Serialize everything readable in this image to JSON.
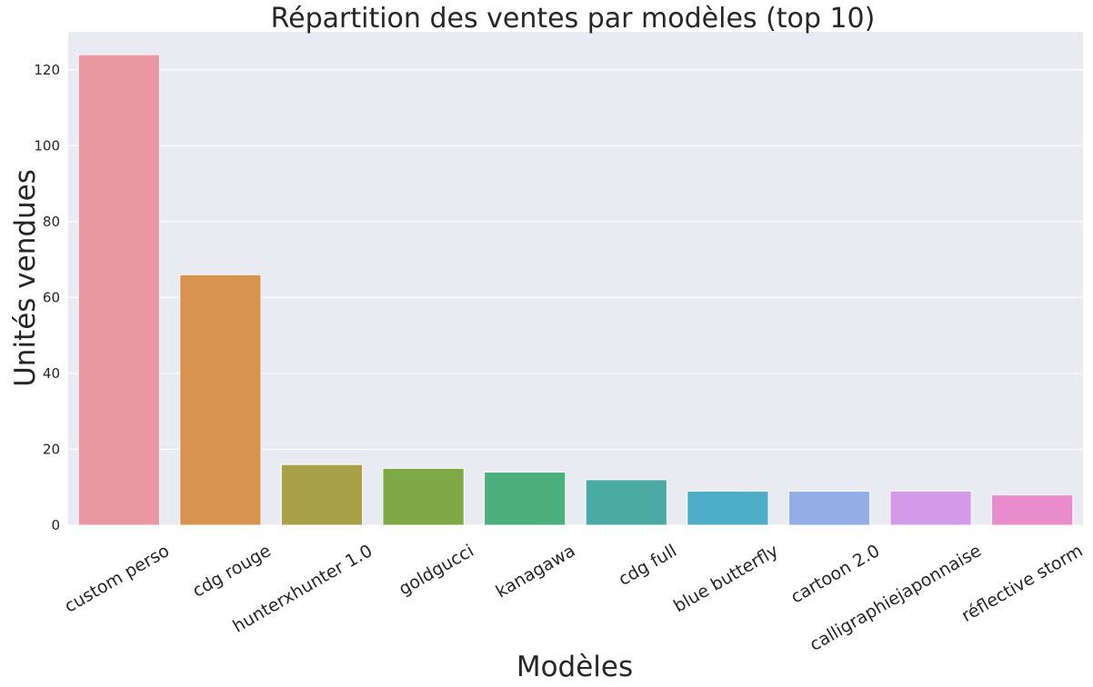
{
  "chart_data": {
    "type": "bar",
    "title": "Répartition des ventes par modèles (top 10)",
    "xlabel": "Modèles",
    "ylabel": "Unités vendues",
    "categories": [
      "custom perso",
      "cdg rouge",
      "hunterxhunter 1.0",
      "goldgucci",
      "kanagawa",
      "cdg full",
      "blue butterfly",
      "cartoon 2.0",
      "calligraphiejaponnaise",
      "réflective storm"
    ],
    "values": [
      124,
      66,
      16,
      15,
      14,
      12,
      9,
      9,
      9,
      8
    ],
    "colors": [
      "#ea96a3",
      "#d8934f",
      "#a9a04a",
      "#7fa947",
      "#4baf7e",
      "#4baaa3",
      "#4eaec8",
      "#93aee7",
      "#d39ae8",
      "#e98ccb"
    ],
    "ylim": [
      0,
      130
    ],
    "yticks": [
      0,
      20,
      40,
      60,
      80,
      100,
      120
    ],
    "grid": true,
    "background": "#eaeaf2",
    "grid_color": "#ffffff"
  }
}
